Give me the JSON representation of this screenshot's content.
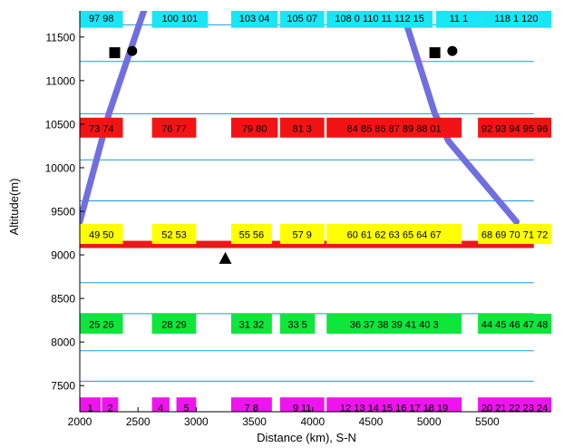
{
  "chart_data": {
    "type": "scatter",
    "title": "",
    "xlabel": "Distance (km), S-N",
    "ylabel": "Altitude(m)",
    "xlim": [
      2000,
      6050
    ],
    "ylim": [
      7200,
      11800
    ],
    "xticks": [
      2000,
      2500,
      3000,
      3500,
      4000,
      4500,
      5000,
      5500
    ],
    "yticks": [
      7500,
      8000,
      8500,
      9000,
      9500,
      10000,
      10500,
      11000,
      11500
    ],
    "grid": false,
    "hlines": {
      "color": "#1f9ad6",
      "values": [
        7550,
        7900,
        8325,
        8680,
        9150,
        9620,
        10090,
        10620,
        11220,
        11640
      ]
    },
    "flight_track": {
      "color": "#6f6fe0",
      "segments": [
        {
          "points": [
            [
              2000,
              9380
            ],
            [
              2250,
              10620
            ],
            [
              2550,
              11800
            ]
          ]
        },
        {
          "points": [
            [
              4770,
              11800
            ],
            [
              5050,
              10620
            ],
            [
              5170,
              10300
            ],
            [
              5750,
              9380
            ]
          ]
        }
      ]
    },
    "red_band": {
      "color": "#ea1818",
      "y": 9120,
      "segments": [
        [
          2000,
          5900
        ]
      ]
    },
    "markers": [
      {
        "shape": "square",
        "x": 2300,
        "y": 11320
      },
      {
        "shape": "circle",
        "x": 2450,
        "y": 11340
      },
      {
        "shape": "square",
        "x": 5050,
        "y": 11320
      },
      {
        "shape": "circle",
        "x": 5200,
        "y": 11340
      },
      {
        "shape": "triangle",
        "x": 3250,
        "y": 8960
      }
    ],
    "label_rows": [
      {
        "color": "#19e6f5",
        "y": 11720,
        "boxes": [
          {
            "x0": 2000,
            "x1": 2370,
            "label": "97 98"
          },
          {
            "x0": 2620,
            "x1": 3100,
            "label": "100 101"
          },
          {
            "x0": 3300,
            "x1": 3700,
            "label": "103 04"
          },
          {
            "x0": 3720,
            "x1": 4100,
            "label": "105 07"
          },
          {
            "x0": 4120,
            "x1": 5030,
            "label": "108 0 110 11 112 15"
          },
          {
            "x0": 5060,
            "x1": 5450,
            "label": "11 1"
          },
          {
            "x0": 5450,
            "x1": 6050,
            "label": "118 1 120"
          }
        ]
      },
      {
        "color": "#f21414",
        "y": 10460,
        "boxes": [
          {
            "x0": 2000,
            "x1": 2370,
            "label": "73 74"
          },
          {
            "x0": 2620,
            "x1": 3000,
            "label": "76 77"
          },
          {
            "x0": 3300,
            "x1": 3700,
            "label": "79 80"
          },
          {
            "x0": 3720,
            "x1": 4100,
            "label": "81 3"
          },
          {
            "x0": 4120,
            "x1": 5280,
            "label": "84 85 86 87 89 88 01"
          },
          {
            "x0": 5420,
            "x1": 6050,
            "label": "92 93 94 95 96"
          }
        ]
      },
      {
        "color": "#ffff00",
        "y": 9240,
        "boxes": [
          {
            "x0": 2000,
            "x1": 2370,
            "label": "49 50"
          },
          {
            "x0": 2620,
            "x1": 3000,
            "label": "52 53"
          },
          {
            "x0": 3300,
            "x1": 3650,
            "label": "55 56"
          },
          {
            "x0": 3720,
            "x1": 4100,
            "label": "57 9"
          },
          {
            "x0": 4120,
            "x1": 5280,
            "label": "60 61 62 63 65 64 67"
          },
          {
            "x0": 5420,
            "x1": 6050,
            "label": "68 69 70 71 72"
          }
        ]
      },
      {
        "color": "#0ee63c",
        "y": 8210,
        "boxes": [
          {
            "x0": 2000,
            "x1": 2370,
            "label": "25 26"
          },
          {
            "x0": 2620,
            "x1": 3000,
            "label": "28 29"
          },
          {
            "x0": 3300,
            "x1": 3650,
            "label": "31 32"
          },
          {
            "x0": 3720,
            "x1": 4020,
            "label": "33 5"
          },
          {
            "x0": 4120,
            "x1": 5280,
            "label": "36 37 38 39 41 40 3"
          },
          {
            "x0": 5420,
            "x1": 6050,
            "label": "44 45 46 47 48"
          }
        ]
      },
      {
        "color": "#ee14ee",
        "y": 7250,
        "boxes": [
          {
            "x0": 2000,
            "x1": 2180,
            "label": "1"
          },
          {
            "x0": 2190,
            "x1": 2330,
            "label": "2"
          },
          {
            "x0": 2620,
            "x1": 2770,
            "label": "4"
          },
          {
            "x0": 2830,
            "x1": 3000,
            "label": "5"
          },
          {
            "x0": 3300,
            "x1": 3650,
            "label": "7 8"
          },
          {
            "x0": 3720,
            "x1": 4100,
            "label": "9 11"
          },
          {
            "x0": 4120,
            "x1": 5280,
            "label": "12 13 14 15 16 17 18 19"
          },
          {
            "x0": 5420,
            "x1": 6050,
            "label": "20 21 22 23 24"
          }
        ]
      }
    ]
  }
}
